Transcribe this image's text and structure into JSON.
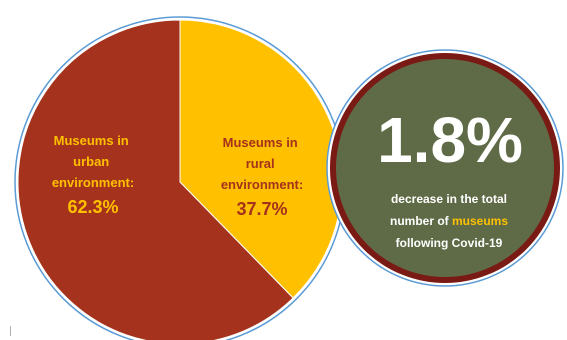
{
  "chart_data": {
    "type": "pie",
    "slices": [
      {
        "label_lines": [
          "Museums in",
          "urban",
          "environment:"
        ],
        "value_text": "62.3%",
        "value": 62.3,
        "color": "#a5321c",
        "label_color": "#ffc000"
      },
      {
        "label_lines": [
          "Museums in",
          "rural",
          "environment:"
        ],
        "value_text": "37.7%",
        "value": 37.7,
        "color": "#ffc000",
        "label_color": "#a5321c"
      }
    ]
  },
  "callout": {
    "big_value": "1.8%",
    "line1": "decrease in the total",
    "line2_prefix": "number of ",
    "line2_highlight": "museums",
    "line3": "following Covid-19",
    "fill_color": "#5f6b47",
    "ring_color": "#7a1a14",
    "text_color": "#ffffff",
    "highlight_color": "#ffc000"
  },
  "colors": {
    "outline": "#5b9bd5",
    "pointer": "#ffc000"
  }
}
